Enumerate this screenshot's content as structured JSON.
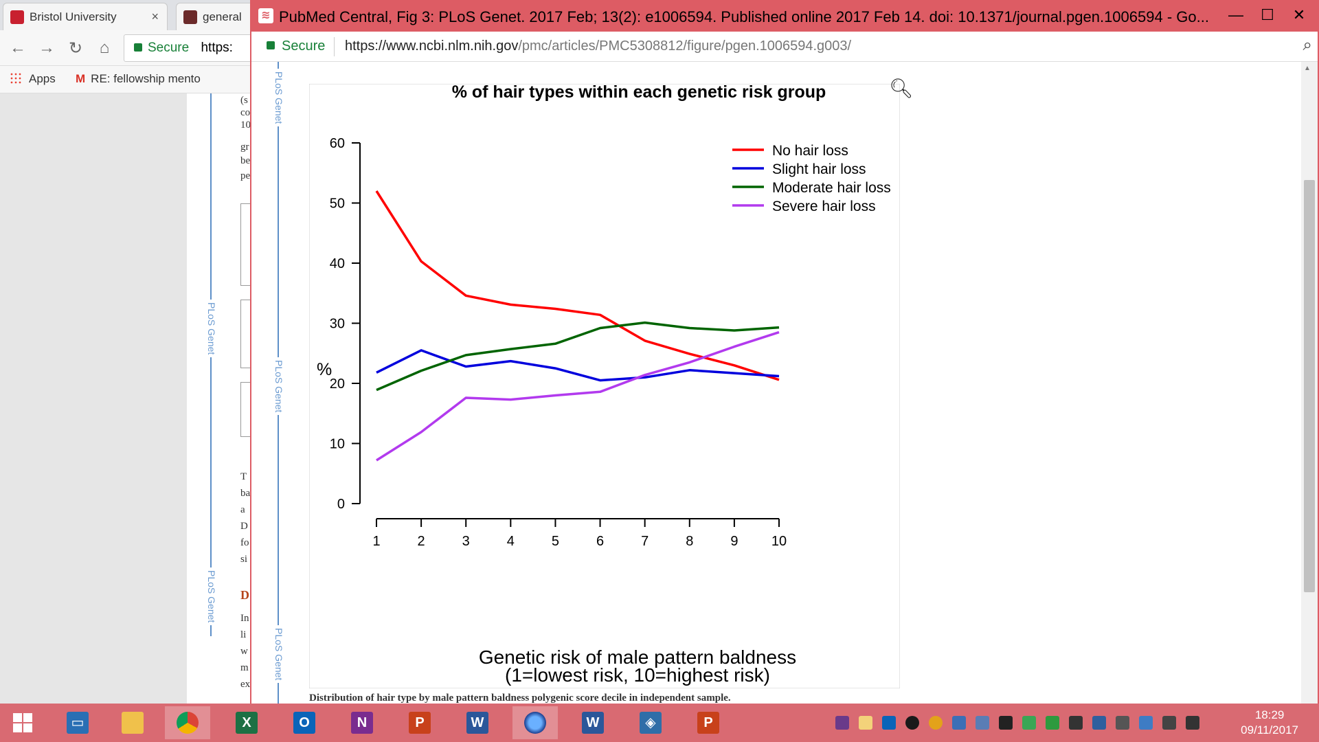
{
  "bg_browser": {
    "tabs": [
      {
        "label": "Bristol University",
        "close": "×"
      },
      {
        "label": "general"
      }
    ],
    "omnibox": {
      "secure": "Secure",
      "url": "https:"
    },
    "bookmarks": [
      {
        "label": "Apps"
      },
      {
        "label": "RE: fellowship mento"
      }
    ],
    "side_labels": [
      "PLoS Genet",
      "PLoS Genet"
    ],
    "text_fragments": [
      "(s",
      "co",
      "10",
      "gr",
      "be",
      "pe",
      "T",
      "ba",
      "a",
      "D",
      "fo",
      "si",
      "D",
      "In",
      "li",
      "w",
      "m",
      "ex"
    ]
  },
  "window": {
    "title": "PubMed Central, Fig 3: PLoS Genet. 2017 Feb; 13(2): e1006594. Published online 2017 Feb 14. doi:  10.1371/journal.pgen.1006594 - Go...",
    "controls": {
      "minimize": "—",
      "maximize": "☐",
      "close": "✕"
    },
    "address": {
      "secure": "Secure",
      "url_host": "https://www.ncbi.nlm.nih.gov",
      "url_path": "/pmc/articles/PMC5308812/figure/pgen.1006594.g003/"
    },
    "journal_side_label": "PLoS Genet",
    "caption_fragment": "Distribution of hair type by male pattern baldness polygenic score decile in independent sample."
  },
  "chart_data": {
    "type": "line",
    "title": "% of hair types within each genetic risk group",
    "xlabel": "Genetic risk of male pattern baldness",
    "xlabel2": "(1=lowest risk, 10=highest risk)",
    "ylabel": "%",
    "x": [
      1,
      2,
      3,
      4,
      5,
      6,
      7,
      8,
      9,
      10
    ],
    "xticks": [
      "1",
      "2",
      "3",
      "4",
      "5",
      "6",
      "7",
      "8",
      "9",
      "10"
    ],
    "yticks": [
      "0",
      "10",
      "20",
      "30",
      "40",
      "50",
      "60"
    ],
    "ylim": [
      0,
      60
    ],
    "xlim": [
      1,
      10
    ],
    "grid": false,
    "legend_position": "top-right",
    "series": [
      {
        "name": "No hair loss",
        "color": "#ff0000",
        "values": [
          52.0,
          40.3,
          34.6,
          33.1,
          32.4,
          31.4,
          27.1,
          24.9,
          23.0,
          20.6
        ]
      },
      {
        "name": "Slight hair loss",
        "color": "#0000dd",
        "values": [
          21.8,
          25.5,
          22.8,
          23.7,
          22.5,
          20.5,
          21.0,
          22.2,
          21.7,
          21.2
        ]
      },
      {
        "name": "Moderate hair loss",
        "color": "#006400",
        "values": [
          18.9,
          22.1,
          24.7,
          25.7,
          26.6,
          29.2,
          30.1,
          29.2,
          28.8,
          29.3
        ]
      },
      {
        "name": "Severe hair loss",
        "color": "#b23aee",
        "values": [
          7.2,
          11.9,
          17.6,
          17.3,
          18.0,
          18.6,
          21.4,
          23.5,
          26.1,
          28.5
        ]
      }
    ]
  },
  "taskbar": {
    "apps": [
      {
        "name": "start"
      },
      {
        "name": "remote-desktop"
      },
      {
        "name": "file-explorer"
      },
      {
        "name": "chrome"
      },
      {
        "name": "excel",
        "glyph": "X"
      },
      {
        "name": "outlook",
        "glyph": "O"
      },
      {
        "name": "onenote",
        "glyph": "N"
      },
      {
        "name": "powerpoint",
        "glyph": "P"
      },
      {
        "name": "word",
        "glyph": "W"
      },
      {
        "name": "firefox-nightly"
      },
      {
        "name": "word",
        "glyph": "W"
      },
      {
        "name": "virtualbox"
      },
      {
        "name": "powerpoint",
        "glyph": "P"
      }
    ],
    "time": "18:29",
    "date": "09/11/2017"
  }
}
